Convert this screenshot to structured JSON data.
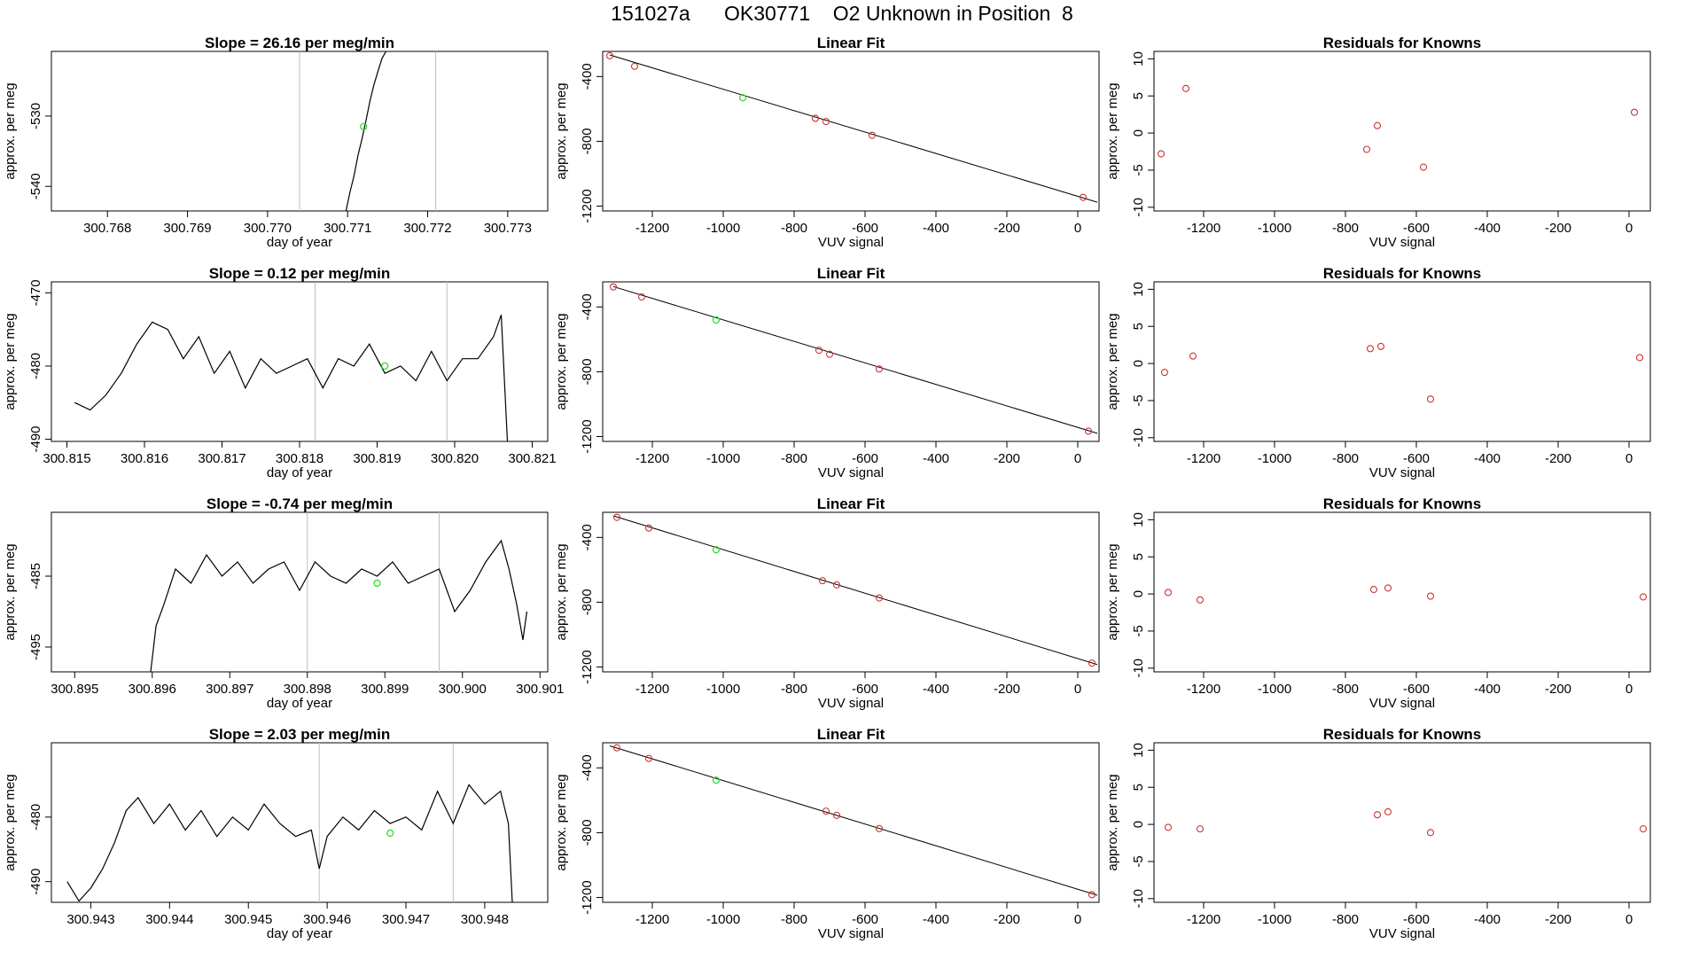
{
  "header": {
    "title": "151027a      OK30771    O2 Unknown in Position  8"
  },
  "colors": {
    "axis": "#000000",
    "series_line": "#000000",
    "unknown_point": "#22dd22",
    "known_point": "#cd3333",
    "vertical_marker": "#bebebe"
  },
  "chart_data": [
    {
      "type": "line",
      "panel": "time-series",
      "row": 1,
      "title": "Slope =  26.16  per meg/min",
      "xlabel": "day of year",
      "ylabel": "approx. per meg",
      "xlim": [
        300.7673,
        300.7735
      ],
      "ylim": [
        -543.5,
        -520.8
      ],
      "xticks": [
        300.768,
        300.769,
        300.77,
        300.771,
        300.772,
        300.773
      ],
      "xtick_labels": [
        "300.768",
        "300.769",
        "300.770",
        "300.771",
        "300.772",
        "300.773"
      ],
      "yticks": [
        -530,
        -540
      ],
      "ytick_labels": [
        "-530",
        "-540"
      ],
      "vlines": [
        300.7704,
        300.7721
      ],
      "unknown_point": {
        "x": 300.7712,
        "y": -531.5
      },
      "series": [
        {
          "name": "signal",
          "x": [
            300.77098,
            300.77103,
            300.77108,
            300.77113,
            300.77118,
            300.77123,
            300.77128,
            300.77133,
            300.77138,
            300.77143,
            300.77148
          ],
          "y": [
            -543.5,
            -540.8,
            -538.5,
            -535.6,
            -533.2,
            -530.6,
            -527.8,
            -525.5,
            -523.6,
            -521.8,
            -520.8
          ]
        }
      ]
    },
    {
      "type": "scatter",
      "panel": "linear-fit",
      "row": 1,
      "title": "Linear Fit",
      "xlabel": "VUV signal",
      "ylabel": "approx. per meg",
      "xlim": [
        -1340,
        60
      ],
      "ylim": [
        -1230,
        -245
      ],
      "xticks": [
        -1200,
        -1000,
        -800,
        -600,
        -400,
        -200,
        0
      ],
      "xtick_labels": [
        "-1200",
        "-1000",
        "-800",
        "-600",
        "-400",
        "-200",
        "0"
      ],
      "yticks": [
        -400,
        -800,
        -1200
      ],
      "ytick_labels": [
        "-400",
        "-800",
        "-1200"
      ],
      "knowns": {
        "x": [
          -1320,
          -1250,
          -740,
          -710,
          -580,
          15
        ],
        "y": [
          -272,
          -337,
          -658,
          -678,
          -763,
          -1146
        ]
      },
      "unknown": {
        "x": -945,
        "y": -531
      },
      "fit_line": {
        "x": [
          -1320,
          55
        ],
        "y": [
          -267,
          -1176
        ]
      }
    },
    {
      "type": "scatter",
      "panel": "residuals",
      "row": 1,
      "title": "Residuals for Knowns",
      "xlabel": "VUV signal",
      "ylabel": "approx. per meg",
      "xlim": [
        -1340,
        60
      ],
      "ylim": [
        -10.5,
        11
      ],
      "xticks": [
        -1200,
        -1000,
        -800,
        -600,
        -400,
        -200,
        0
      ],
      "xtick_labels": [
        "-1200",
        "-1000",
        "-800",
        "-600",
        "-400",
        "-200",
        "0"
      ],
      "yticks": [
        10,
        5,
        0,
        -5,
        -10
      ],
      "ytick_labels": [
        "10",
        "5",
        "0",
        "-5",
        "-10"
      ],
      "residuals": {
        "x": [
          -1320,
          -1250,
          -740,
          -710,
          -580,
          15
        ],
        "y": [
          -2.8,
          6.0,
          -2.2,
          1.0,
          -4.6,
          2.8
        ]
      }
    },
    {
      "type": "line",
      "panel": "time-series",
      "row": 2,
      "title": "Slope =  0.12  per meg/min",
      "xlabel": "day of year",
      "ylabel": "approx. per meg",
      "xlim": [
        300.8148,
        300.8212
      ],
      "ylim": [
        -490.3,
        -468.5
      ],
      "xticks": [
        300.815,
        300.816,
        300.817,
        300.818,
        300.819,
        300.82,
        300.821
      ],
      "xtick_labels": [
        "300.815",
        "300.816",
        "300.817",
        "300.818",
        "300.819",
        "300.820",
        "300.821"
      ],
      "yticks": [
        -470,
        -480,
        -490
      ],
      "ytick_labels": [
        "-470",
        "-480",
        "-490"
      ],
      "vlines": [
        300.8182,
        300.8199
      ],
      "unknown_point": {
        "x": 300.8191,
        "y": -480.0
      },
      "series": [
        {
          "name": "signal",
          "x": [
            300.8151,
            300.8153,
            300.8155,
            300.8157,
            300.8159,
            300.8161,
            300.8163,
            300.8165,
            300.8167,
            300.8169,
            300.8171,
            300.8173,
            300.8175,
            300.8177,
            300.8179,
            300.8181,
            300.8183,
            300.8185,
            300.8187,
            300.8189,
            300.8191,
            300.8193,
            300.8195,
            300.8197,
            300.8199,
            300.8201,
            300.8203,
            300.8205,
            300.8206,
            300.82068
          ],
          "y": [
            -485,
            -486,
            -484,
            -481,
            -477,
            -474,
            -475,
            -479,
            -476,
            -481,
            -478,
            -483,
            -479,
            -481,
            -480,
            -479,
            -483,
            -479,
            -480,
            -477,
            -481,
            -480,
            -482,
            -478,
            -482,
            -479,
            -479,
            -476,
            -473,
            -490.3
          ]
        }
      ]
    },
    {
      "type": "scatter",
      "panel": "linear-fit",
      "row": 2,
      "title": "Linear Fit",
      "xlabel": "VUV signal",
      "ylabel": "approx. per meg",
      "xlim": [
        -1340,
        60
      ],
      "ylim": [
        -1230,
        -245
      ],
      "xticks": [
        -1200,
        -1000,
        -800,
        -600,
        -400,
        -200,
        0
      ],
      "xtick_labels": [
        "-1200",
        "-1000",
        "-800",
        "-600",
        "-400",
        "-200",
        "0"
      ],
      "yticks": [
        -400,
        -800,
        -1200
      ],
      "ytick_labels": [
        "-400",
        "-800",
        "-1200"
      ],
      "knowns": {
        "x": [
          -1310,
          -1230,
          -730,
          -700,
          -560,
          30
        ],
        "y": [
          -276,
          -338,
          -667,
          -692,
          -783,
          -1167
        ]
      },
      "unknown": {
        "x": -1020,
        "y": -480
      },
      "fit_line": {
        "x": [
          -1310,
          55
        ],
        "y": [
          -274,
          -1180
        ]
      }
    },
    {
      "type": "scatter",
      "panel": "residuals",
      "row": 2,
      "title": "Residuals for Knowns",
      "xlabel": "VUV signal",
      "ylabel": "approx. per meg",
      "xlim": [
        -1340,
        60
      ],
      "ylim": [
        -10.5,
        11
      ],
      "xticks": [
        -1200,
        -1000,
        -800,
        -600,
        -400,
        -200,
        0
      ],
      "xtick_labels": [
        "-1200",
        "-1000",
        "-800",
        "-600",
        "-400",
        "-200",
        "0"
      ],
      "yticks": [
        10,
        5,
        0,
        -5,
        -10
      ],
      "ytick_labels": [
        "10",
        "5",
        "0",
        "-5",
        "-10"
      ],
      "residuals": {
        "x": [
          -1310,
          -1230,
          -730,
          -700,
          -560,
          30
        ],
        "y": [
          -1.2,
          1.0,
          2.0,
          2.3,
          -4.8,
          0.8
        ]
      }
    },
    {
      "type": "line",
      "panel": "time-series",
      "row": 3,
      "title": "Slope =  -0.74  per meg/min",
      "xlabel": "day of year",
      "ylabel": "approx. per meg",
      "xlim": [
        300.8947,
        300.9011
      ],
      "ylim": [
        -498.5,
        -476.0
      ],
      "xticks": [
        300.895,
        300.896,
        300.897,
        300.898,
        300.899,
        300.9,
        300.901
      ],
      "xtick_labels": [
        "300.895",
        "300.896",
        "300.897",
        "300.898",
        "300.899",
        "300.900",
        "300.901"
      ],
      "yticks": [
        -485,
        -495
      ],
      "ytick_labels": [
        "-485",
        "-495"
      ],
      "vlines": [
        300.898,
        300.8997
      ],
      "unknown_point": {
        "x": 300.8989,
        "y": -486.0
      },
      "series": [
        {
          "name": "signal",
          "x": [
            300.89598,
            300.89605,
            300.89615,
            300.8963,
            300.8965,
            300.8967,
            300.8969,
            300.8971,
            300.8973,
            300.8975,
            300.8977,
            300.8979,
            300.8981,
            300.8983,
            300.8985,
            300.8987,
            300.8989,
            300.8991,
            300.8993,
            300.8995,
            300.8997,
            300.8999,
            300.9001,
            300.9003,
            300.9005,
            300.9006,
            300.9007,
            300.90078,
            300.90083
          ],
          "y": [
            -498.5,
            -492,
            -489,
            -484,
            -486,
            -482,
            -485,
            -483,
            -486,
            -484,
            -483,
            -487,
            -483,
            -485,
            -486,
            -484,
            -485,
            -483,
            -486,
            -485,
            -484,
            -490,
            -487,
            -483,
            -480,
            -484,
            -489,
            -494,
            -490
          ]
        }
      ]
    },
    {
      "type": "scatter",
      "panel": "linear-fit",
      "row": 3,
      "title": "Linear Fit",
      "xlabel": "VUV signal",
      "ylabel": "approx. per meg",
      "xlim": [
        -1340,
        60
      ],
      "ylim": [
        -1230,
        -245
      ],
      "xticks": [
        -1200,
        -1000,
        -800,
        -600,
        -400,
        -200,
        0
      ],
      "xtick_labels": [
        "-1200",
        "-1000",
        "-800",
        "-600",
        "-400",
        "-200",
        "0"
      ],
      "yticks": [
        -400,
        -800,
        -1200
      ],
      "ytick_labels": [
        "-400",
        "-800",
        "-1200"
      ],
      "knowns": {
        "x": [
          -1300,
          -1210,
          -720,
          -680,
          -560,
          40
        ],
        "y": [
          -276,
          -342,
          -667,
          -693,
          -774,
          -1176
        ]
      },
      "unknown": {
        "x": -1020,
        "y": -476
      },
      "fit_line": {
        "x": [
          -1310,
          55
        ],
        "y": [
          -267,
          -1185
        ]
      }
    },
    {
      "type": "scatter",
      "panel": "residuals",
      "row": 3,
      "title": "Residuals for Knowns",
      "xlabel": "VUV signal",
      "ylabel": "approx. per meg",
      "xlim": [
        -1340,
        60
      ],
      "ylim": [
        -10.5,
        11
      ],
      "xticks": [
        -1200,
        -1000,
        -800,
        -600,
        -400,
        -200,
        0
      ],
      "xtick_labels": [
        "-1200",
        "-1000",
        "-800",
        "-600",
        "-400",
        "-200",
        "0"
      ],
      "yticks": [
        10,
        5,
        0,
        -5,
        -10
      ],
      "ytick_labels": [
        "10",
        "5",
        "0",
        "-5",
        "-10"
      ],
      "residuals": {
        "x": [
          -1300,
          -1210,
          -720,
          -680,
          -560,
          40
        ],
        "y": [
          0.2,
          -0.8,
          0.6,
          0.8,
          -0.3,
          -0.4
        ]
      }
    },
    {
      "type": "line",
      "panel": "time-series",
      "row": 4,
      "title": "Slope =  2.03  per meg/min",
      "xlabel": "day of year",
      "ylabel": "approx. per meg",
      "xlim": [
        300.9425,
        300.9488
      ],
      "ylim": [
        -493.2,
        -468.5
      ],
      "xticks": [
        300.943,
        300.944,
        300.945,
        300.946,
        300.947,
        300.948
      ],
      "xtick_labels": [
        "300.943",
        "300.944",
        "300.945",
        "300.946",
        "300.947",
        "300.948"
      ],
      "yticks": [
        -480,
        -490
      ],
      "ytick_labels": [
        "-480",
        "-490"
      ],
      "vlines": [
        300.9459,
        300.9476
      ],
      "unknown_point": {
        "x": 300.9468,
        "y": -482.5
      },
      "series": [
        {
          "name": "signal",
          "x": [
            300.9427,
            300.94285,
            300.943,
            300.94315,
            300.9433,
            300.94345,
            300.9436,
            300.9438,
            300.944,
            300.9442,
            300.9444,
            300.9446,
            300.9448,
            300.945,
            300.9452,
            300.9454,
            300.9456,
            300.9458,
            300.9459,
            300.946,
            300.9462,
            300.9464,
            300.9466,
            300.9468,
            300.947,
            300.9472,
            300.9474,
            300.9476,
            300.9478,
            300.948,
            300.9482,
            300.9483,
            300.94835
          ],
          "y": [
            -490,
            -493,
            -491,
            -488,
            -484,
            -479,
            -477,
            -481,
            -478,
            -482,
            -479,
            -483,
            -480,
            -482,
            -478,
            -481,
            -483,
            -482,
            -488,
            -483,
            -480,
            -482,
            -479,
            -481,
            -480,
            -482,
            -476,
            -481,
            -475,
            -478,
            -476,
            -481,
            -493.2
          ]
        }
      ]
    },
    {
      "type": "scatter",
      "panel": "linear-fit",
      "row": 4,
      "title": "Linear Fit",
      "xlabel": "VUV signal",
      "ylabel": "approx. per meg",
      "xlim": [
        -1340,
        60
      ],
      "ylim": [
        -1230,
        -245
      ],
      "xticks": [
        -1200,
        -1000,
        -800,
        -600,
        -400,
        -200,
        0
      ],
      "xtick_labels": [
        "-1200",
        "-1000",
        "-800",
        "-600",
        "-400",
        "-200",
        "0"
      ],
      "yticks": [
        -400,
        -800,
        -1200
      ],
      "ytick_labels": [
        "-400",
        "-800",
        "-1200"
      ],
      "knowns": {
        "x": [
          -1300,
          -1210,
          -710,
          -680,
          -560,
          40
        ],
        "y": [
          -276,
          -342,
          -667,
          -693,
          -775,
          -1183
        ]
      },
      "unknown": {
        "x": -1020,
        "y": -476
      },
      "fit_line": {
        "x": [
          -1320,
          55
        ],
        "y": [
          -264,
          -1186
        ]
      }
    },
    {
      "type": "scatter",
      "panel": "residuals",
      "row": 4,
      "title": "Residuals for Knowns",
      "xlabel": "VUV signal",
      "ylabel": "approx. per meg",
      "xlim": [
        -1340,
        60
      ],
      "ylim": [
        -10.5,
        11
      ],
      "xticks": [
        -1200,
        -1000,
        -800,
        -600,
        -400,
        -200,
        0
      ],
      "xtick_labels": [
        "-1200",
        "-1000",
        "-800",
        "-600",
        "-400",
        "-200",
        "0"
      ],
      "yticks": [
        10,
        5,
        0,
        -5,
        -10
      ],
      "ytick_labels": [
        "10",
        "5",
        "0",
        "-5",
        "-10"
      ],
      "residuals": {
        "x": [
          -1300,
          -1210,
          -710,
          -680,
          -560,
          40
        ],
        "y": [
          -0.4,
          -0.6,
          1.3,
          1.7,
          -1.1,
          -0.6
        ]
      }
    }
  ]
}
